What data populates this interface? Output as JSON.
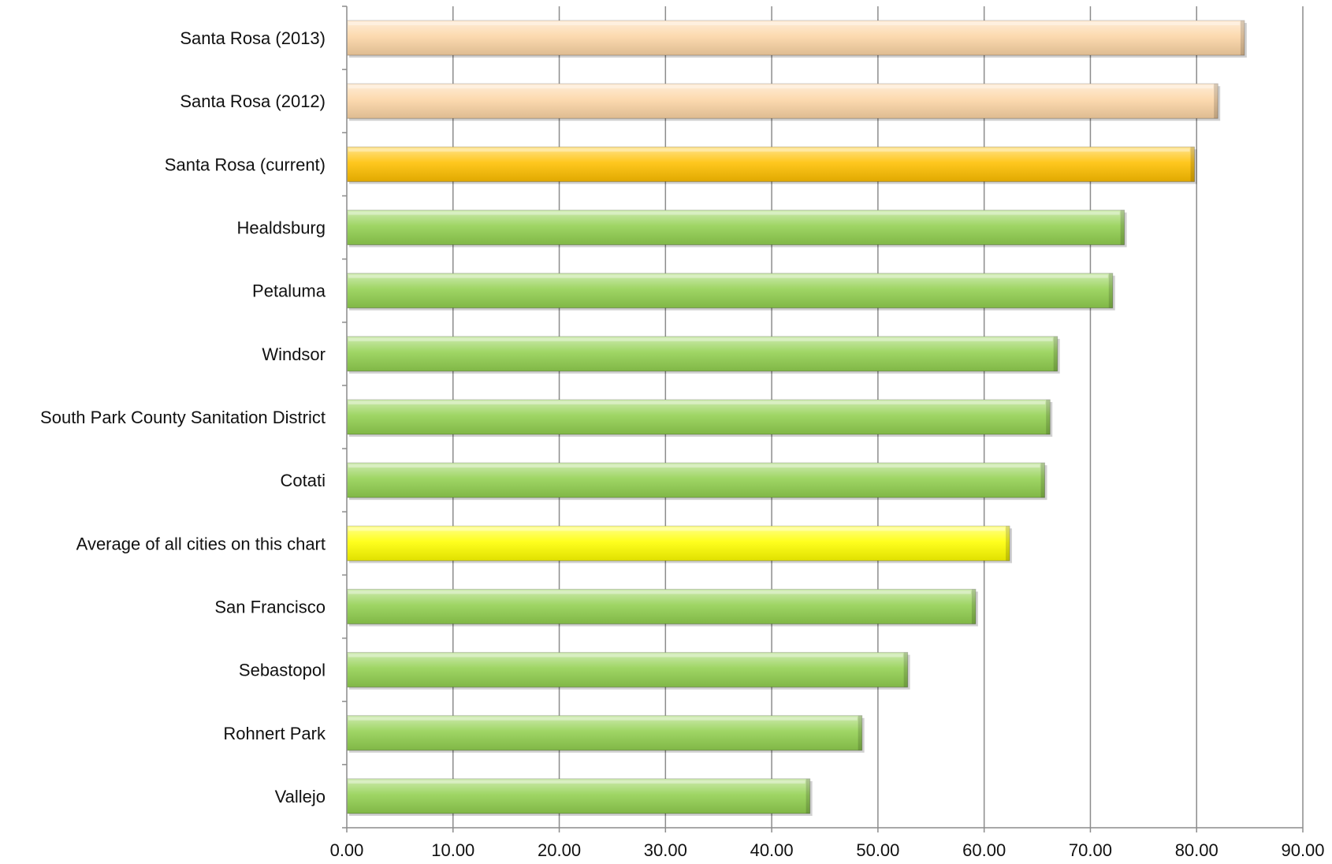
{
  "chart_data": {
    "type": "bar",
    "orientation": "horizontal",
    "title": "",
    "xlabel": "",
    "ylabel": "",
    "xlim": [
      0,
      90
    ],
    "grid": "vertical",
    "legend": "none",
    "ticks": [
      "0.00",
      "10.00",
      "20.00",
      "30.00",
      "40.00",
      "50.00",
      "60.00",
      "70.00",
      "80.00",
      "90.00"
    ],
    "tick_values": [
      0,
      10,
      20,
      30,
      40,
      50,
      60,
      70,
      80,
      90
    ],
    "categories": [
      "Santa Rosa (2013)",
      "Santa Rosa (2012)",
      "Santa Rosa (current)",
      "Healdsburg",
      "Petaluma",
      "Windsor",
      "South Park County Sanitation District",
      "Cotati",
      "Average of all cities on this chart",
      "San Francisco",
      "Sebastopol",
      "Rohnert Park",
      "Vallejo"
    ],
    "values": [
      84.5,
      82.0,
      79.8,
      73.2,
      72.1,
      66.9,
      66.2,
      65.7,
      62.4,
      59.2,
      52.8,
      48.5,
      43.6
    ],
    "bar_colors": [
      "#fcd5a5",
      "#fcd5a5",
      "#ffc000",
      "#92d050",
      "#92d050",
      "#92d050",
      "#92d050",
      "#92d050",
      "#ffff00",
      "#92d050",
      "#92d050",
      "#92d050",
      "#92d050"
    ]
  }
}
